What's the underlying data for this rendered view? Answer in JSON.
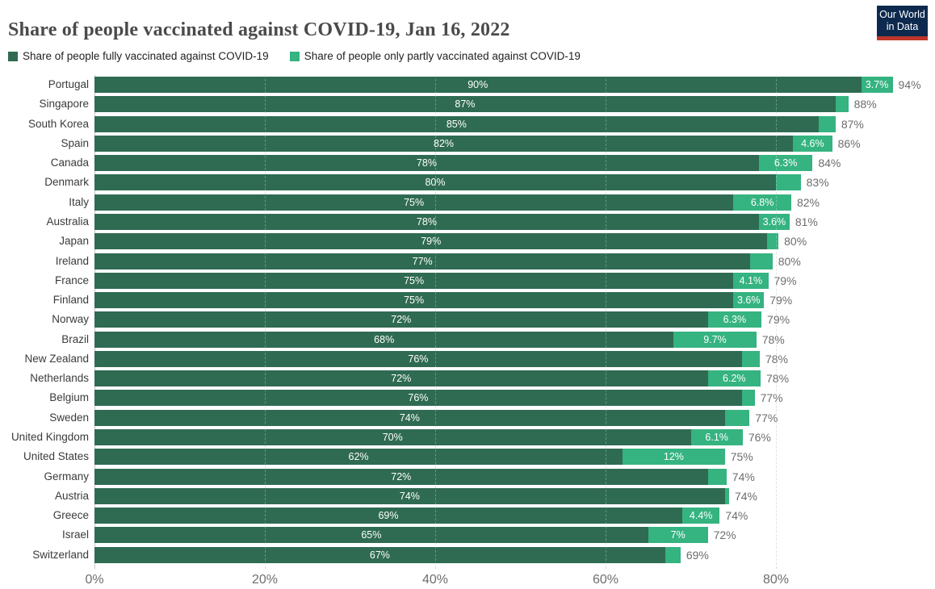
{
  "header": {
    "title": "Share of people vaccinated against COVID-19, Jan 16, 2022",
    "logo": {
      "line1": "Our World",
      "line2": "in Data"
    }
  },
  "legend": [
    {
      "label": "Share of people fully vaccinated against COVID-19",
      "color": "#2f6b52"
    },
    {
      "label": "Share of people only partly vaccinated against COVID-19",
      "color": "#35b380"
    }
  ],
  "colors": {
    "fully_green": "#2f6b52",
    "partly_green": "#35b380",
    "grid_line": "#dadada",
    "zero_axis_line": "#c6c6c6",
    "grid_over_bar": "rgba(255,255,255,0.28)",
    "total_label_gray": "#6d6d6d",
    "country_label_gray": "#3b3b3b",
    "axis_tick_gray": "#6e6e6e",
    "title_gray": "#4a4a4a",
    "logo_navy": "#0d2a4e",
    "logo_red": "#c0362c"
  },
  "chart_data": {
    "type": "bar",
    "orientation": "horizontal-stacked",
    "title": "Share of people vaccinated against COVID-19, Jan 16, 2022",
    "series": [
      "Share of people fully vaccinated against COVID-19",
      "Share of people only partly vaccinated against COVID-19"
    ],
    "x_axis": {
      "tick_labels": [
        "0%",
        "20%",
        "40%",
        "60%",
        "80%"
      ],
      "tick_values": [
        0,
        20,
        40,
        60,
        80
      ],
      "range": [
        0,
        98.5
      ],
      "grid": "dashed"
    },
    "legend_position": "top",
    "countries": [
      {
        "name": "Portugal",
        "fully": 90,
        "partly": 3.7,
        "fully_label": "90%",
        "partly_label": "3.7%",
        "total_label": "94%"
      },
      {
        "name": "Singapore",
        "fully": 87,
        "partly": 1.5,
        "fully_label": "87%",
        "partly_label": "",
        "total_label": "88%"
      },
      {
        "name": "South Korea",
        "fully": 85,
        "partly": 2.0,
        "fully_label": "85%",
        "partly_label": "",
        "total_label": "87%"
      },
      {
        "name": "Spain",
        "fully": 82,
        "partly": 4.6,
        "fully_label": "82%",
        "partly_label": "4.6%",
        "total_label": "86%"
      },
      {
        "name": "Canada",
        "fully": 78,
        "partly": 6.3,
        "fully_label": "78%",
        "partly_label": "6.3%",
        "total_label": "84%"
      },
      {
        "name": "Denmark",
        "fully": 80,
        "partly": 2.9,
        "fully_label": "80%",
        "partly_label": "",
        "total_label": "83%"
      },
      {
        "name": "Italy",
        "fully": 75,
        "partly": 6.8,
        "fully_label": "75%",
        "partly_label": "6.8%",
        "total_label": "82%"
      },
      {
        "name": "Australia",
        "fully": 78,
        "partly": 3.6,
        "fully_label": "78%",
        "partly_label": "3.6%",
        "total_label": "81%"
      },
      {
        "name": "Japan",
        "fully": 79,
        "partly": 1.3,
        "fully_label": "79%",
        "partly_label": "",
        "total_label": "80%"
      },
      {
        "name": "Ireland",
        "fully": 77,
        "partly": 2.6,
        "fully_label": "77%",
        "partly_label": "",
        "total_label": "80%"
      },
      {
        "name": "France",
        "fully": 75,
        "partly": 4.1,
        "fully_label": "75%",
        "partly_label": "4.1%",
        "total_label": "79%"
      },
      {
        "name": "Finland",
        "fully": 75,
        "partly": 3.6,
        "fully_label": "75%",
        "partly_label": "3.6%",
        "total_label": "79%"
      },
      {
        "name": "Norway",
        "fully": 72,
        "partly": 6.3,
        "fully_label": "72%",
        "partly_label": "6.3%",
        "total_label": "79%"
      },
      {
        "name": "Brazil",
        "fully": 68,
        "partly": 9.7,
        "fully_label": "68%",
        "partly_label": "9.7%",
        "total_label": "78%"
      },
      {
        "name": "New Zealand",
        "fully": 76,
        "partly": 2.1,
        "fully_label": "76%",
        "partly_label": "",
        "total_label": "78%"
      },
      {
        "name": "Netherlands",
        "fully": 72,
        "partly": 6.2,
        "fully_label": "72%",
        "partly_label": "6.2%",
        "total_label": "78%"
      },
      {
        "name": "Belgium",
        "fully": 76,
        "partly": 1.5,
        "fully_label": "76%",
        "partly_label": "",
        "total_label": "77%"
      },
      {
        "name": "Sweden",
        "fully": 74,
        "partly": 2.9,
        "fully_label": "74%",
        "partly_label": "",
        "total_label": "77%"
      },
      {
        "name": "United Kingdom",
        "fully": 70,
        "partly": 6.1,
        "fully_label": "70%",
        "partly_label": "6.1%",
        "total_label": "76%"
      },
      {
        "name": "United States",
        "fully": 62,
        "partly": 12,
        "fully_label": "62%",
        "partly_label": "12%",
        "total_label": "75%"
      },
      {
        "name": "Germany",
        "fully": 72,
        "partly": 2.2,
        "fully_label": "72%",
        "partly_label": "",
        "total_label": "74%"
      },
      {
        "name": "Austria",
        "fully": 74,
        "partly": 0.5,
        "fully_label": "74%",
        "partly_label": "",
        "total_label": "74%"
      },
      {
        "name": "Greece",
        "fully": 69,
        "partly": 4.4,
        "fully_label": "69%",
        "partly_label": "4.4%",
        "total_label": "74%"
      },
      {
        "name": "Israel",
        "fully": 65,
        "partly": 7,
        "fully_label": "65%",
        "partly_label": "7%",
        "total_label": "72%"
      },
      {
        "name": "Switzerland",
        "fully": 67,
        "partly": 1.8,
        "fully_label": "67%",
        "partly_label": "",
        "total_label": "69%"
      }
    ]
  }
}
